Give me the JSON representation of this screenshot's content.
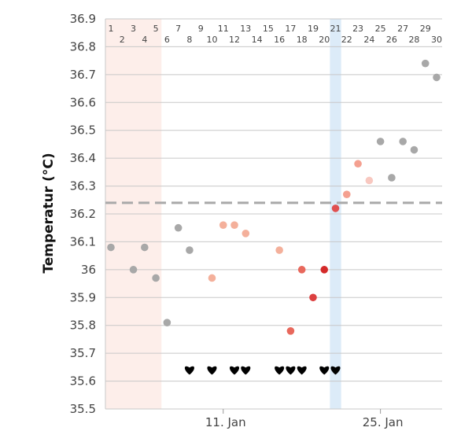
{
  "chart_data": {
    "type": "scatter",
    "ylabel": "Temperatur (°C)",
    "ylim": [
      35.5,
      36.9
    ],
    "y_ticks": [
      "35.5",
      "35.6",
      "35.7",
      "35.8",
      "35.9",
      "36",
      "36.1",
      "36.2",
      "36.3",
      "36.4",
      "36.5",
      "36.6",
      "36.7",
      "36.8",
      "36.9"
    ],
    "x_range": [
      1,
      30
    ],
    "day_labels": [
      "1",
      "2",
      "3",
      "4",
      "5",
      "6",
      "7",
      "8",
      "9",
      "10",
      "11",
      "12",
      "13",
      "14",
      "15",
      "16",
      "17",
      "18",
      "19",
      "20",
      "21",
      "22",
      "23",
      "24",
      "25",
      "26",
      "27",
      "28",
      "29",
      "30"
    ],
    "date_labels": [
      {
        "day": 11,
        "label": "11. Jan"
      },
      {
        "day": 25,
        "label": "25. Jan"
      }
    ],
    "threshold": 36.24,
    "shaded_ranges": [
      {
        "from": 1,
        "to": 5,
        "color": "#fdeeea"
      },
      {
        "from": 21,
        "to": 21,
        "color": "#dcebf8"
      }
    ],
    "points": [
      {
        "day": 1,
        "value": 36.08,
        "color": "#a8a8a8"
      },
      {
        "day": 3,
        "value": 36.0,
        "color": "#a8a8a8"
      },
      {
        "day": 4,
        "value": 36.08,
        "color": "#a8a8a8"
      },
      {
        "day": 5,
        "value": 35.97,
        "color": "#a8a8a8"
      },
      {
        "day": 6,
        "value": 35.81,
        "color": "#a8a8a8"
      },
      {
        "day": 7,
        "value": 36.15,
        "color": "#a8a8a8"
      },
      {
        "day": 8,
        "value": 36.07,
        "color": "#a8a8a8"
      },
      {
        "day": 10,
        "value": 35.97,
        "color": "#f4b09b"
      },
      {
        "day": 11,
        "value": 36.16,
        "color": "#f4b09b"
      },
      {
        "day": 12,
        "value": 36.16,
        "color": "#f4b09b"
      },
      {
        "day": 13,
        "value": 36.13,
        "color": "#f4b09b"
      },
      {
        "day": 16,
        "value": 36.07,
        "color": "#f4b09b"
      },
      {
        "day": 17,
        "value": 35.78,
        "color": "#e8685c"
      },
      {
        "day": 18,
        "value": 36.0,
        "color": "#e8685c"
      },
      {
        "day": 19,
        "value": 35.9,
        "color": "#dc4040"
      },
      {
        "day": 20,
        "value": 36.0,
        "color": "#d42a2a"
      },
      {
        "day": 21,
        "value": 36.22,
        "color": "#e05050"
      },
      {
        "day": 22,
        "value": 36.27,
        "color": "#f4a090"
      },
      {
        "day": 23,
        "value": 36.38,
        "color": "#f4a090"
      },
      {
        "day": 24,
        "value": 36.32,
        "color": "#f8c8c0"
      },
      {
        "day": 25,
        "value": 36.46,
        "color": "#a8a8a8"
      },
      {
        "day": 26,
        "value": 36.33,
        "color": "#a8a8a8"
      },
      {
        "day": 27,
        "value": 36.46,
        "color": "#a8a8a8"
      },
      {
        "day": 28,
        "value": 36.43,
        "color": "#a8a8a8"
      },
      {
        "day": 29,
        "value": 36.74,
        "color": "#a8a8a8"
      },
      {
        "day": 30,
        "value": 36.69,
        "color": "#a8a8a8"
      }
    ],
    "heart_days": [
      8,
      10,
      12,
      13,
      16,
      17,
      18,
      20,
      21
    ],
    "heart_level": 35.64,
    "grid": true
  }
}
